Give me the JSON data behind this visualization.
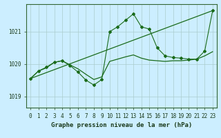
{
  "background_color": "#cceeff",
  "grid_color": "#aacccc",
  "line_color": "#1a6b1a",
  "xlim": [
    -0.5,
    23.5
  ],
  "ylim": [
    1018.65,
    1021.85
  ],
  "yticks": [
    1019,
    1020,
    1021
  ],
  "xticks": [
    0,
    1,
    2,
    3,
    4,
    5,
    6,
    7,
    8,
    9,
    10,
    11,
    12,
    13,
    14,
    15,
    16,
    17,
    18,
    19,
    20,
    21,
    22,
    23
  ],
  "xlabel": "Graphe pression niveau de la mer (hPa)",
  "jagged_x": [
    0,
    1,
    2,
    3,
    4,
    5,
    6,
    7,
    8,
    9,
    10,
    11,
    12,
    13,
    14,
    15,
    16,
    17,
    18,
    19,
    20,
    21,
    22,
    23
  ],
  "jagged_y": [
    1019.55,
    1019.78,
    1019.9,
    1020.05,
    1020.1,
    1019.95,
    1019.75,
    1019.5,
    1019.35,
    1019.52,
    1021.0,
    1021.15,
    1021.35,
    1021.55,
    1021.15,
    1021.08,
    1020.5,
    1020.25,
    1020.2,
    1020.18,
    1020.15,
    1020.15,
    1020.4,
    1021.65
  ],
  "smooth_y": [
    1019.55,
    1019.78,
    1019.88,
    1020.05,
    1020.1,
    1019.97,
    1019.85,
    1019.68,
    1019.52,
    1019.6,
    1020.08,
    1020.15,
    1020.22,
    1020.28,
    1020.18,
    1020.12,
    1020.1,
    1020.08,
    1020.1,
    1020.1,
    1020.12,
    1020.15,
    1020.25,
    1020.38
  ],
  "trend_x": [
    0,
    23
  ],
  "trend_y": [
    1019.55,
    1021.65
  ]
}
